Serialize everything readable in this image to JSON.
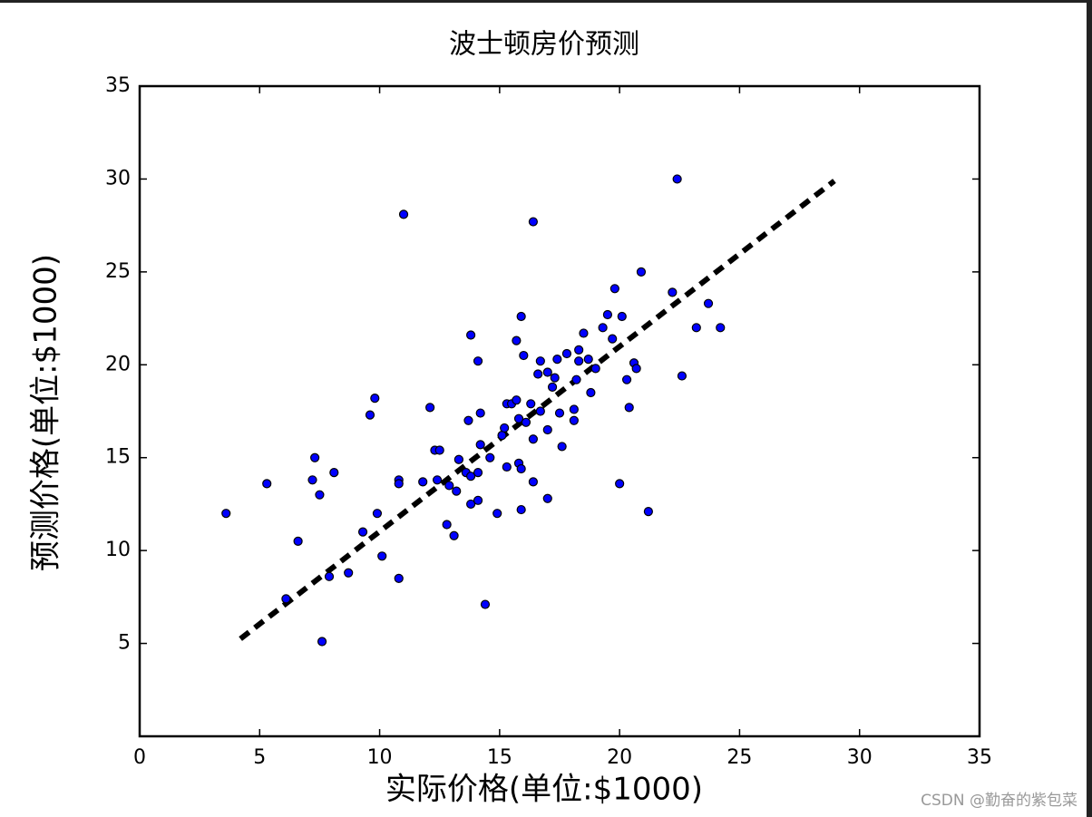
{
  "chart_data": {
    "type": "scatter",
    "title": "波士顿房价预测",
    "x_label": "实际价格(单位:$1000)",
    "y_label": "预测价格(单位:$1000)",
    "color": "#0000ff",
    "x": [
      3.6,
      5.3,
      6.1,
      6.6,
      7.3,
      7.2,
      7.5,
      8.1,
      7.9,
      7.6,
      8.7,
      9.3,
      9.6,
      9.8,
      9.9,
      10.1,
      10.8,
      10.8,
      10.8,
      11.0,
      11.8,
      12.1,
      12.3,
      12.5,
      12.4,
      12.8,
      13.1,
      12.9,
      13.2,
      13.3,
      13.6,
      13.8,
      13.7,
      13.8,
      13.8,
      14.1,
      14.1,
      14.1,
      14.2,
      14.2,
      14.4,
      14.6,
      14.9,
      15.1,
      15.2,
      15.3,
      15.3,
      15.5,
      15.7,
      15.7,
      15.8,
      15.9,
      15.9,
      15.8,
      15.9,
      16.0,
      16.1,
      16.3,
      16.4,
      16.4,
      16.4,
      16.6,
      16.7,
      16.7,
      17.0,
      17.0,
      17.0,
      17.2,
      17.3,
      17.4,
      17.5,
      17.6,
      17.8,
      18.1,
      18.1,
      18.2,
      18.3,
      18.3,
      18.5,
      18.7,
      18.8,
      19.0,
      19.3,
      19.5,
      19.8,
      19.7,
      20.0,
      20.1,
      20.3,
      20.4,
      20.6,
      20.7,
      20.9,
      21.2,
      22.2,
      22.4,
      22.6,
      23.2,
      23.7,
      24.2
    ],
    "values": [
      12.0,
      13.6,
      7.4,
      10.5,
      15.0,
      13.8,
      13.0,
      14.2,
      8.6,
      5.1,
      8.8,
      11.0,
      17.3,
      18.2,
      12.0,
      9.7,
      13.8,
      13.6,
      8.5,
      28.1,
      13.7,
      17.7,
      15.4,
      15.4,
      13.8,
      11.4,
      10.8,
      13.5,
      13.2,
      14.9,
      14.2,
      14.0,
      17.0,
      21.6,
      12.5,
      20.2,
      14.2,
      12.7,
      17.4,
      15.7,
      7.1,
      15.0,
      12.0,
      16.2,
      16.6,
      17.9,
      14.5,
      17.9,
      18.1,
      21.3,
      14.7,
      14.4,
      12.2,
      17.1,
      22.6,
      20.5,
      16.9,
      17.9,
      27.7,
      16.0,
      13.7,
      19.5,
      20.2,
      17.5,
      12.8,
      16.5,
      19.6,
      18.8,
      19.3,
      20.3,
      17.4,
      15.6,
      20.6,
      17.6,
      17.0,
      19.2,
      20.8,
      20.2,
      21.7,
      20.3,
      18.5,
      19.8,
      22.0,
      22.7,
      24.1,
      21.4,
      13.6,
      22.6,
      19.2,
      17.7,
      20.1,
      19.8,
      25.0,
      12.1,
      23.9,
      30.0,
      19.4,
      22.0,
      23.3,
      22.0
    ],
    "fit_line": {
      "x": [
        4.2,
        28.95
      ],
      "y": [
        5.25,
        29.9
      ]
    },
    "xlim": [
      0,
      35
    ],
    "ylim": [
      0,
      35
    ],
    "xticks": [
      0,
      5,
      10,
      15,
      20,
      25,
      30,
      35
    ],
    "yticks": [
      5,
      10,
      15,
      20,
      25,
      30,
      35
    ],
    "watermark": "CSDN @勤奋的紫包菜"
  }
}
